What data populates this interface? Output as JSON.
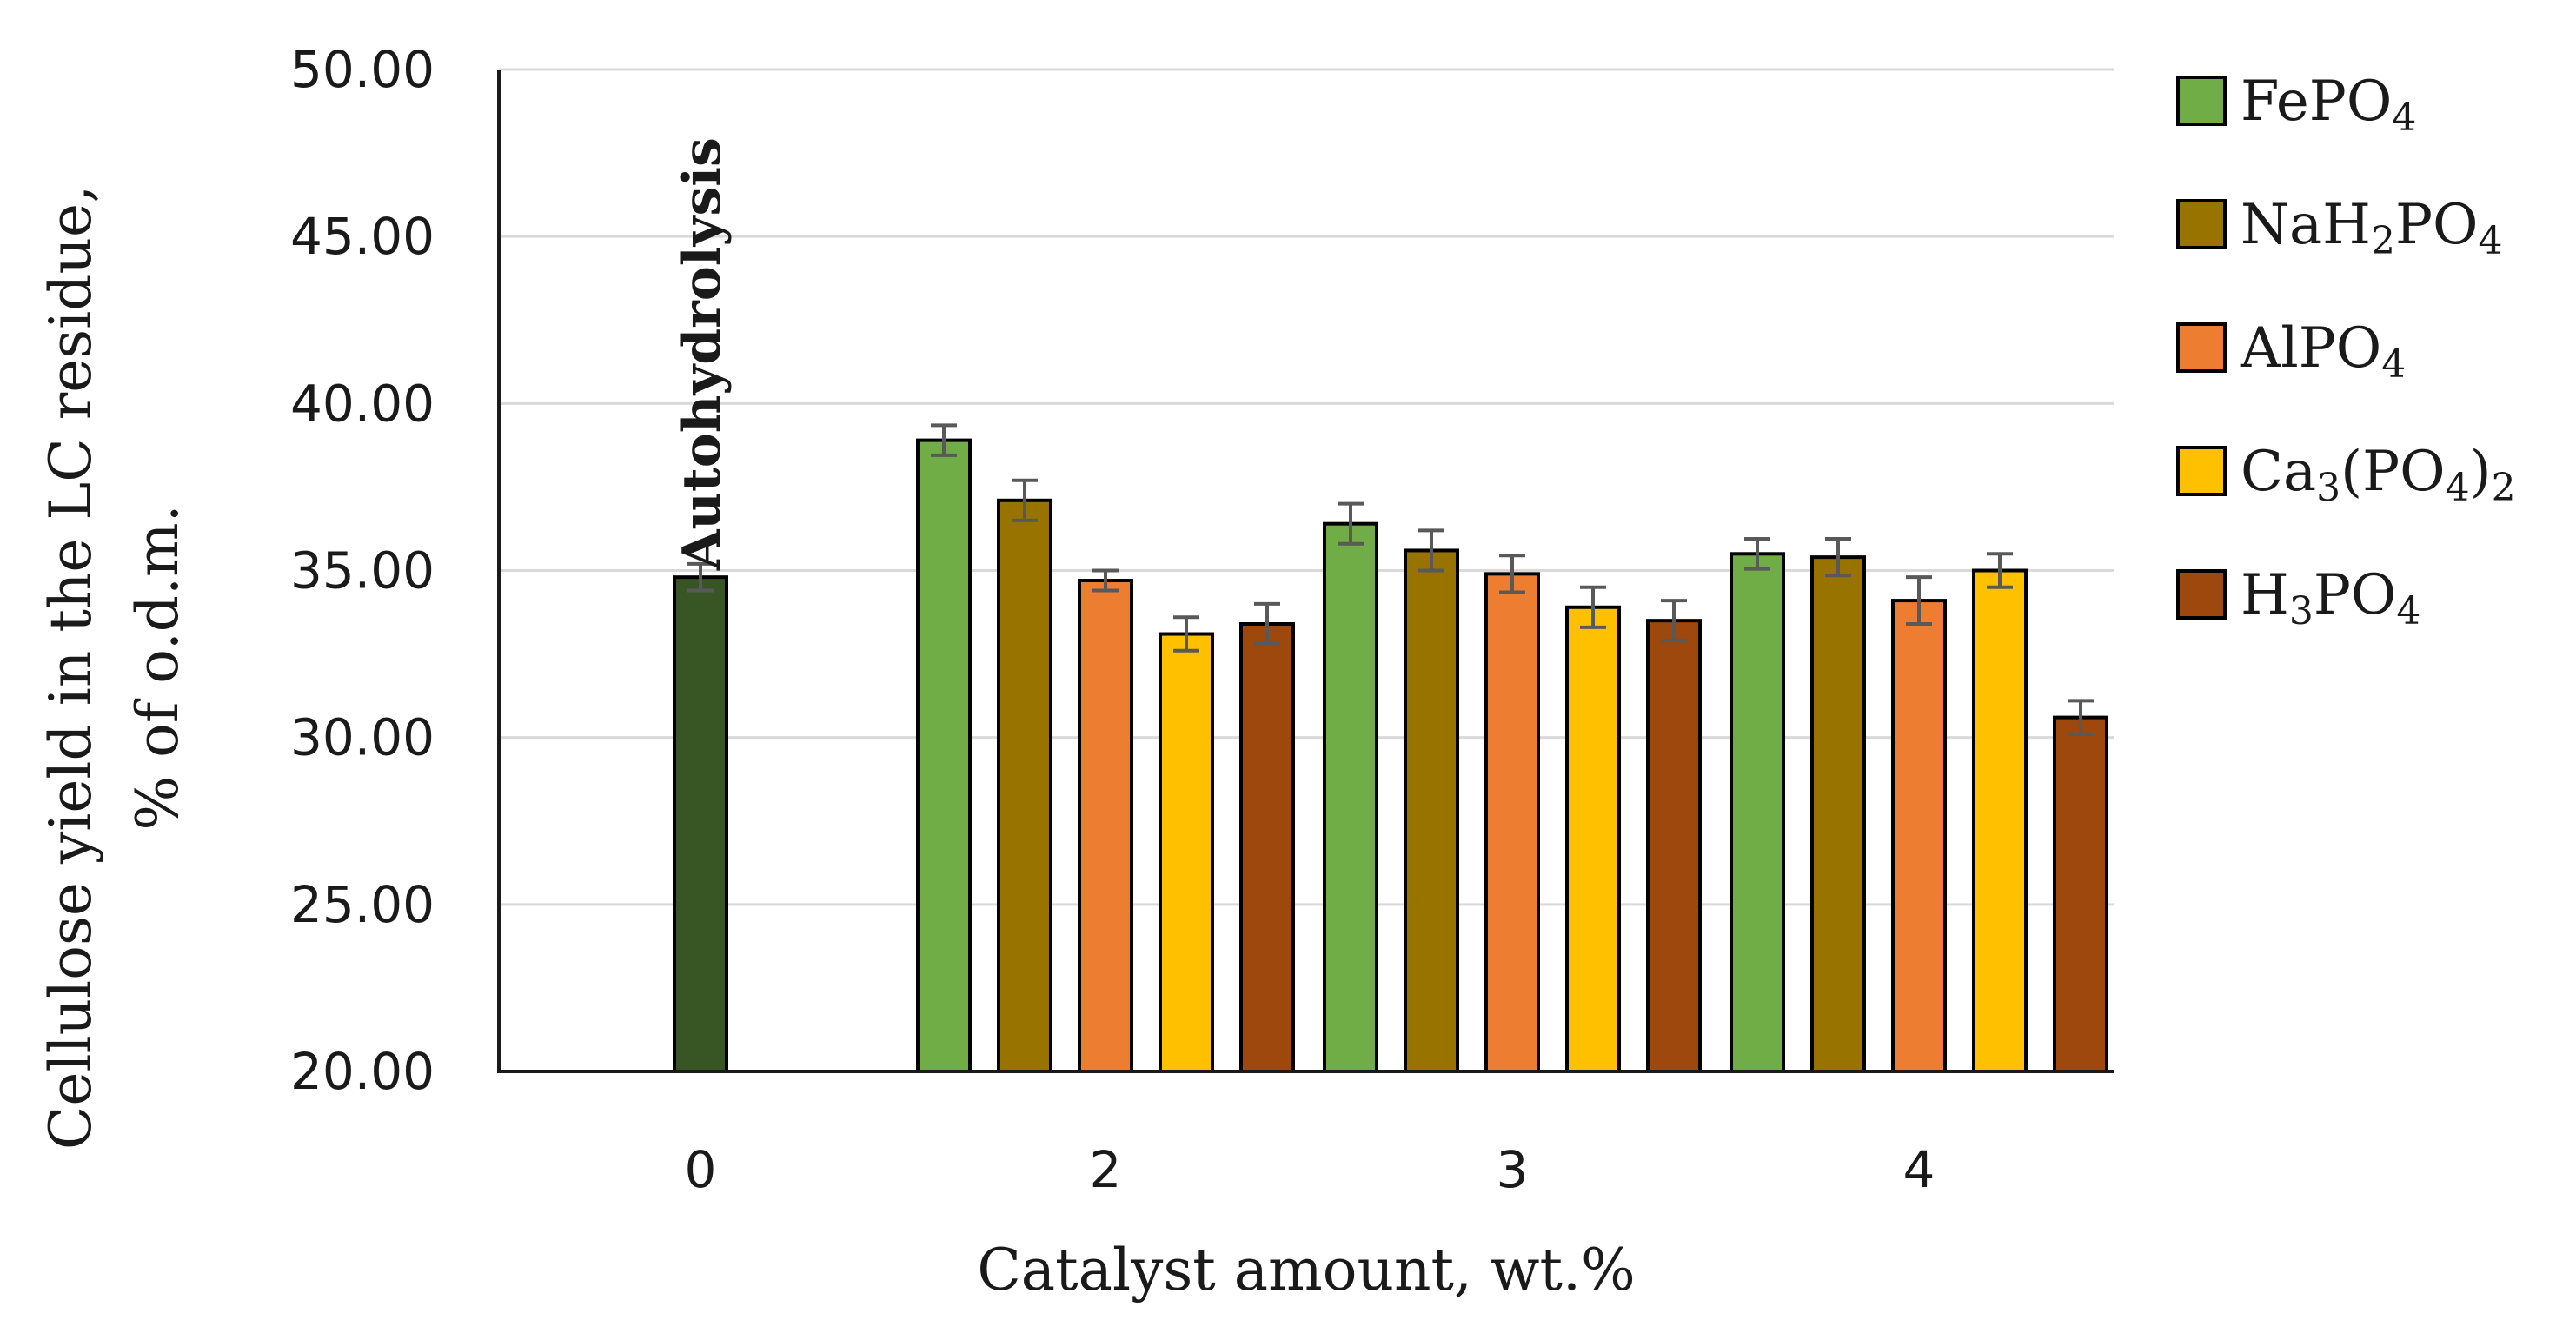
{
  "chart_data": {
    "type": "bar",
    "title": "",
    "xlabel": "Catalyst amount, wt.%",
    "ylabel_line1": "Cellulose  yield in the LC residue,",
    "ylabel_line2": "% of o.d.m.",
    "ylim": [
      20,
      50
    ],
    "yticks": [
      "20.00",
      "25.00",
      "30.00",
      "35.00",
      "40.00",
      "45.00",
      "50.00"
    ],
    "ytick_values": [
      20,
      25,
      30,
      35,
      40,
      45,
      50
    ],
    "grid": true,
    "legend_position": "right",
    "categories": [
      "0",
      "2",
      "3",
      "4"
    ],
    "autohydrolysis": {
      "label": "Autohydrolysis",
      "category": "0",
      "value": 34.8,
      "error": 0.4,
      "color": "#375623"
    },
    "series": [
      {
        "name": "FePO4",
        "legend": {
          "parts": [
            {
              "t": "FePO",
              "sub": false
            },
            {
              "t": "4",
              "sub": true
            }
          ]
        },
        "color": "#70AD47",
        "values": [
          null,
          38.9,
          36.4,
          35.5
        ],
        "errors": [
          null,
          0.45,
          0.6,
          0.45
        ]
      },
      {
        "name": "NaH2PO4",
        "legend": {
          "parts": [
            {
              "t": "NaH",
              "sub": false
            },
            {
              "t": "2",
              "sub": true
            },
            {
              "t": "PO",
              "sub": false
            },
            {
              "t": "4",
              "sub": true
            }
          ]
        },
        "color": "#997300",
        "values": [
          null,
          37.1,
          35.6,
          35.4
        ],
        "errors": [
          null,
          0.6,
          0.6,
          0.55
        ]
      },
      {
        "name": "AlPO4",
        "legend": {
          "parts": [
            {
              "t": "AlPO",
              "sub": false
            },
            {
              "t": "4",
              "sub": true
            }
          ]
        },
        "color": "#ED7D31",
        "values": [
          null,
          34.7,
          34.9,
          34.1
        ],
        "errors": [
          null,
          0.3,
          0.55,
          0.7
        ]
      },
      {
        "name": "Ca3(PO4)2",
        "legend": {
          "parts": [
            {
              "t": "Ca",
              "sub": false
            },
            {
              "t": "3",
              "sub": true
            },
            {
              "t": "(PO",
              "sub": false
            },
            {
              "t": "4",
              "sub": true
            },
            {
              "t": ")",
              "sub": false
            },
            {
              "t": "2",
              "sub": true
            }
          ]
        },
        "color": "#FFC000",
        "values": [
          null,
          33.1,
          33.9,
          35.0
        ],
        "errors": [
          null,
          0.5,
          0.6,
          0.5
        ]
      },
      {
        "name": "H3PO4",
        "legend": {
          "parts": [
            {
              "t": "H",
              "sub": false
            },
            {
              "t": "3",
              "sub": true
            },
            {
              "t": "PO",
              "sub": false
            },
            {
              "t": "4",
              "sub": true
            }
          ]
        },
        "color": "#9E480E",
        "values": [
          null,
          33.4,
          33.5,
          30.6
        ],
        "errors": [
          null,
          0.6,
          0.6,
          0.5
        ]
      }
    ],
    "gridline_color": "#D9D9D9",
    "errorbar_color": "#595959"
  }
}
